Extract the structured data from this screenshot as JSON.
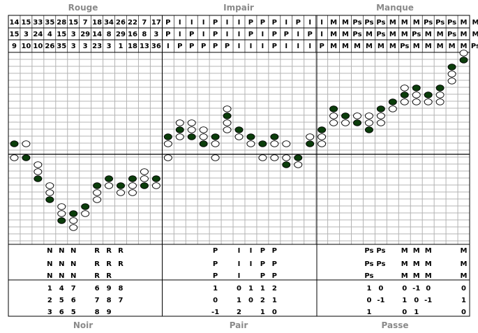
{
  "labels": {
    "top": [
      "Rouge",
      "Impair",
      "Manque"
    ],
    "bottom": [
      "Noir",
      "Pair",
      "Passe"
    ]
  },
  "colors": {
    "fill": "#0b3d0b",
    "grid": "#b4b4b4",
    "line": "#000000"
  },
  "header_rows": [
    [
      "14",
      "15",
      "33",
      "35",
      "28",
      "15",
      "7",
      "18",
      "34",
      "26",
      "22",
      "7",
      "17",
      "P",
      "I",
      "I",
      "I",
      "P",
      "I",
      "I",
      "P",
      "P",
      "P",
      "I",
      "P",
      "I",
      "I",
      "M",
      "M",
      "Ps",
      "Ps",
      "Ps",
      "M",
      "M",
      "M",
      "Ps",
      "Ps",
      "Ps",
      "M",
      "M"
    ],
    [
      "15",
      "3",
      "24",
      "4",
      "15",
      "3",
      "29",
      "14",
      "8",
      "29",
      "16",
      "8",
      "3",
      "P",
      "I",
      "P",
      "I",
      "P",
      "I",
      "I",
      "P",
      "I",
      "P",
      "P",
      "I",
      "P",
      "I",
      "M",
      "M",
      "Ps",
      "M",
      "Ps",
      "M",
      "M",
      "Ps",
      "M",
      "M",
      "Ps",
      "M",
      "M"
    ],
    [
      "9",
      "10",
      "10",
      "26",
      "35",
      "3",
      "3",
      "23",
      "3",
      "1",
      "18",
      "13",
      "36",
      "I",
      "P",
      "P",
      "P",
      "P",
      "P",
      "I",
      "I",
      "I",
      "P",
      "I",
      "I",
      "I",
      "P",
      "M",
      "M",
      "M",
      "M",
      "M",
      "M",
      "Ps",
      "M",
      "M",
      "M",
      "M",
      "M",
      "Ps"
    ]
  ],
  "chart": {
    "columns": [
      {
        "col": 0,
        "f": [
          1
        ],
        "e": [
          0
        ]
      },
      {
        "col": 1,
        "f": [
          0
        ],
        "e": [
          1
        ]
      },
      {
        "col": 2,
        "f": [
          -3
        ],
        "e": [
          -1,
          -2
        ]
      },
      {
        "col": 3,
        "f": [
          -6
        ],
        "e": [
          -4,
          -5
        ]
      },
      {
        "col": 4,
        "f": [
          -9
        ],
        "e": [
          -7,
          -8
        ]
      },
      {
        "col": 5,
        "f": [
          -8
        ],
        "e": [
          -9,
          -10
        ]
      },
      {
        "col": 6,
        "f": [
          -7
        ],
        "e": [
          -8
        ]
      },
      {
        "col": 7,
        "f": [
          -4
        ],
        "e": [
          -5,
          -6
        ]
      },
      {
        "col": 8,
        "f": [
          -3
        ],
        "e": [
          -4
        ]
      },
      {
        "col": 9,
        "f": [
          -4
        ],
        "e": [
          -5
        ]
      },
      {
        "col": 10,
        "f": [
          -3
        ],
        "e": [
          -4,
          -5
        ]
      },
      {
        "col": 11,
        "f": [
          -4
        ],
        "e": [
          -2,
          -3
        ]
      },
      {
        "col": 12,
        "f": [
          -3
        ],
        "e": [
          -4
        ]
      },
      {
        "col": 13,
        "f": [
          2
        ],
        "e": [
          0,
          1
        ]
      },
      {
        "col": 14,
        "f": [
          3
        ],
        "e": [
          4,
          2
        ]
      },
      {
        "col": 15,
        "f": [
          2
        ],
        "e": [
          4,
          3
        ]
      },
      {
        "col": 16,
        "f": [
          1
        ],
        "e": [
          3,
          2
        ]
      },
      {
        "col": 17,
        "f": [
          2
        ],
        "e": [
          1,
          0
        ]
      },
      {
        "col": 18,
        "f": [
          5
        ],
        "e": [
          4,
          3,
          6
        ]
      },
      {
        "col": 19,
        "f": [
          3
        ],
        "e": [
          2
        ]
      },
      {
        "col": 20,
        "f": [
          2
        ],
        "e": [
          1
        ]
      },
      {
        "col": 21,
        "f": [
          1
        ],
        "e": [
          0
        ]
      },
      {
        "col": 22,
        "f": [
          2
        ],
        "e": [
          1,
          0
        ]
      },
      {
        "col": 23,
        "f": [
          -1
        ],
        "e": [
          1,
          0
        ]
      },
      {
        "col": 24,
        "f": [
          0
        ],
        "e": [
          -1
        ]
      },
      {
        "col": 25,
        "f": [
          1
        ],
        "e": [
          2
        ]
      },
      {
        "col": 26,
        "f": [
          3
        ],
        "e": [
          2,
          1
        ]
      },
      {
        "col": 27,
        "f": [
          6
        ],
        "e": [
          5,
          4
        ]
      },
      {
        "col": 28,
        "f": [
          5
        ],
        "e": [
          4
        ]
      },
      {
        "col": 29,
        "f": [
          4
        ],
        "e": [
          5
        ]
      },
      {
        "col": 30,
        "f": [
          3
        ],
        "e": [
          5,
          4
        ]
      },
      {
        "col": 31,
        "f": [
          6
        ],
        "e": [
          5,
          4
        ]
      },
      {
        "col": 32,
        "f": [
          7
        ],
        "e": [
          6
        ]
      },
      {
        "col": 33,
        "f": [
          8
        ],
        "e": [
          9,
          7
        ]
      },
      {
        "col": 34,
        "f": [
          9
        ],
        "e": [
          8,
          7
        ]
      },
      {
        "col": 35,
        "f": [
          8
        ],
        "e": [
          7
        ]
      },
      {
        "col": 36,
        "f": [
          9
        ],
        "e": [
          8,
          7
        ]
      },
      {
        "col": 37,
        "f": [
          12
        ],
        "e": [
          10,
          11
        ]
      },
      {
        "col": 38,
        "f": [
          13
        ],
        "e": [
          14
        ]
      }
    ]
  },
  "pattern_rows": [
    [
      [
        3,
        "N"
      ],
      [
        4,
        "N"
      ],
      [
        5,
        "N"
      ],
      [
        7,
        "R"
      ],
      [
        8,
        "R"
      ],
      [
        9,
        "R"
      ],
      [
        17,
        "P"
      ],
      [
        19,
        "I"
      ],
      [
        20,
        "I"
      ],
      [
        21,
        "P"
      ],
      [
        22,
        "P"
      ],
      [
        30,
        "Ps"
      ],
      [
        31,
        "Ps"
      ],
      [
        33,
        "M"
      ],
      [
        34,
        "M"
      ],
      [
        35,
        "M"
      ],
      [
        38,
        "M"
      ]
    ],
    [
      [
        3,
        "N"
      ],
      [
        4,
        "N"
      ],
      [
        5,
        "N"
      ],
      [
        7,
        "R"
      ],
      [
        8,
        "R"
      ],
      [
        9,
        "R"
      ],
      [
        17,
        "P"
      ],
      [
        19,
        "I"
      ],
      [
        20,
        "I"
      ],
      [
        21,
        "P"
      ],
      [
        22,
        "P"
      ],
      [
        30,
        "Ps"
      ],
      [
        31,
        "Ps"
      ],
      [
        33,
        "M"
      ],
      [
        34,
        "M"
      ],
      [
        35,
        "M"
      ],
      [
        38,
        "M"
      ]
    ],
    [
      [
        3,
        "N"
      ],
      [
        4,
        "N"
      ],
      [
        5,
        "N"
      ],
      [
        7,
        "R"
      ],
      [
        8,
        "R"
      ],
      [
        17,
        "P"
      ],
      [
        19,
        "I"
      ],
      [
        21,
        "P"
      ],
      [
        22,
        "P"
      ],
      [
        30,
        "Ps"
      ],
      [
        33,
        "M"
      ],
      [
        34,
        "M"
      ],
      [
        35,
        "M"
      ],
      [
        38,
        "M"
      ]
    ]
  ],
  "number_rows": [
    [
      [
        3,
        "1"
      ],
      [
        4,
        "4"
      ],
      [
        5,
        "7"
      ],
      [
        7,
        "6"
      ],
      [
        8,
        "9"
      ],
      [
        9,
        "8"
      ],
      [
        17,
        "1"
      ],
      [
        19,
        "0"
      ],
      [
        20,
        "1"
      ],
      [
        21,
        "1"
      ],
      [
        22,
        "2"
      ],
      [
        30,
        "1"
      ],
      [
        31,
        "0"
      ],
      [
        33,
        "0"
      ],
      [
        34,
        "-1"
      ],
      [
        35,
        "0"
      ],
      [
        38,
        "0"
      ]
    ],
    [
      [
        3,
        "2"
      ],
      [
        4,
        "5"
      ],
      [
        5,
        "6"
      ],
      [
        7,
        "7"
      ],
      [
        8,
        "8"
      ],
      [
        9,
        "7"
      ],
      [
        17,
        "0"
      ],
      [
        19,
        "1"
      ],
      [
        20,
        "0"
      ],
      [
        21,
        "2"
      ],
      [
        22,
        "1"
      ],
      [
        30,
        "0"
      ],
      [
        31,
        "-1"
      ],
      [
        33,
        "1"
      ],
      [
        34,
        "0"
      ],
      [
        35,
        "-1"
      ],
      [
        38,
        "1"
      ]
    ],
    [
      [
        3,
        "3"
      ],
      [
        4,
        "6"
      ],
      [
        5,
        "5"
      ],
      [
        7,
        "8"
      ],
      [
        8,
        "9"
      ],
      [
        17,
        "-1"
      ],
      [
        19,
        "2"
      ],
      [
        21,
        "1"
      ],
      [
        22,
        "0"
      ],
      [
        30,
        "1"
      ],
      [
        33,
        "0"
      ],
      [
        34,
        "1"
      ],
      [
        38,
        "0"
      ]
    ]
  ]
}
